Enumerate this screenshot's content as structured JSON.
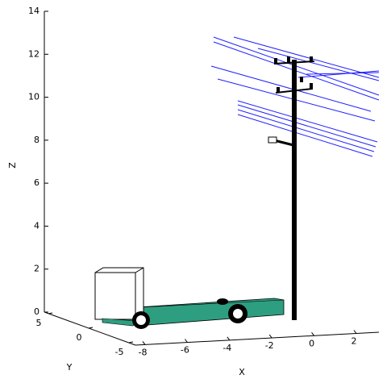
{
  "chart_data": {
    "type": "scene3d",
    "x_label": "X",
    "y_label": "Y",
    "z_label": "Z",
    "xticks": [
      -8,
      -6,
      -4,
      -2,
      0,
      2
    ],
    "yticks": [
      5,
      0,
      -5
    ],
    "zticks": [
      0,
      2,
      4,
      6,
      8,
      10,
      12,
      14
    ],
    "zlim": [
      0,
      14
    ]
  }
}
